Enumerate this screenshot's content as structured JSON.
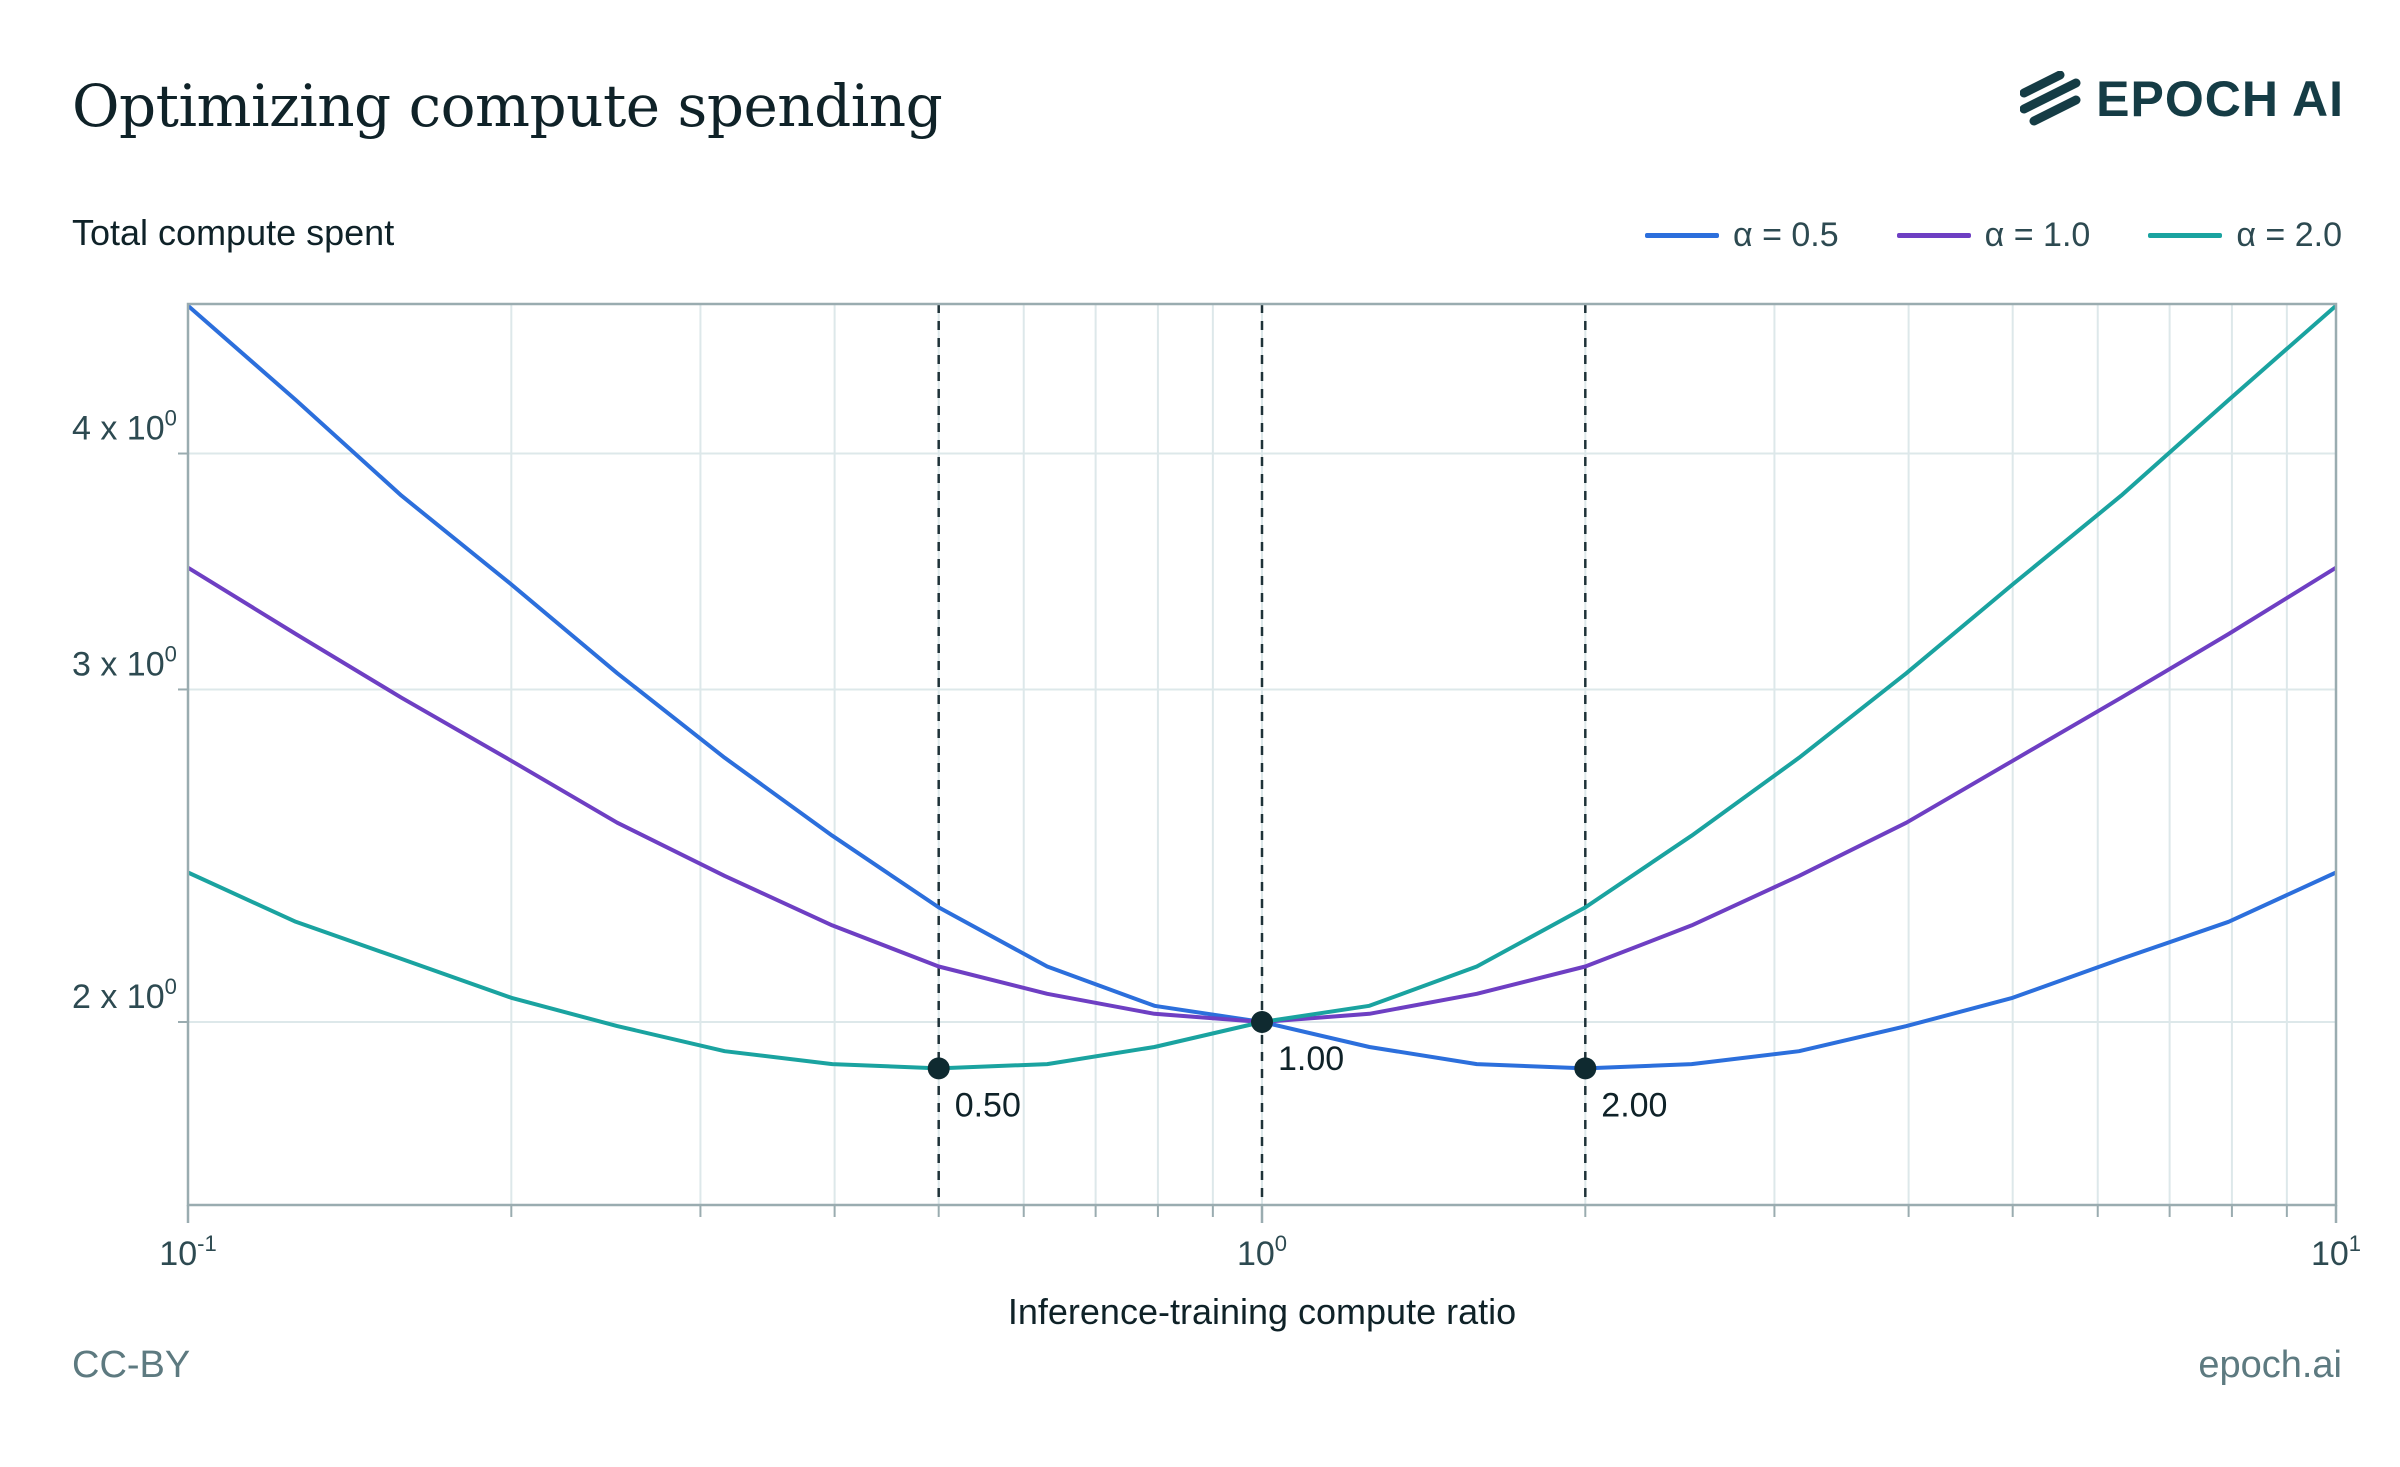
{
  "header": {
    "title": "Optimizing compute spending",
    "brand": "EPOCH AI"
  },
  "footer": {
    "license": "CC-BY",
    "site": "epoch.ai"
  },
  "colors": {
    "alpha_0_5": "#2c6fdc",
    "alpha_1_0": "#6e3fc3",
    "alpha_2_0": "#1aa3a0",
    "marker": "#0f2a30",
    "grid": "#dde8ea",
    "axis": "#9aacb0"
  },
  "chart_data": {
    "type": "line",
    "title": "Optimizing compute spending",
    "ylabel": "Total compute spent",
    "xlabel": "Inference-training compute ratio",
    "xscale": "log",
    "yscale": "log",
    "xlim": [
      0.1,
      10
    ],
    "ylim": [
      1.6,
      4.8
    ],
    "grid": true,
    "legend_position": "top-right",
    "x_ticks": [
      {
        "value": 0.1,
        "base": "10",
        "exp": "-1"
      },
      {
        "value": 1,
        "base": "10",
        "exp": "0"
      },
      {
        "value": 10,
        "base": "10",
        "exp": "1"
      }
    ],
    "y_ticks": [
      {
        "value": 2,
        "label": "2 x 10",
        "exp": "0"
      },
      {
        "value": 3,
        "label": "3 x 10",
        "exp": "0"
      },
      {
        "value": 4,
        "label": "4 x 10",
        "exp": "0"
      }
    ],
    "x": [
      0.1,
      0.126,
      0.158,
      0.2,
      0.251,
      0.316,
      0.398,
      0.5,
      0.631,
      0.794,
      1.0,
      1.259,
      1.585,
      2.0,
      2.512,
      3.162,
      3.981,
      5.0,
      6.31,
      7.943,
      10.0
    ],
    "series": [
      {
        "name": "α = 0.5",
        "color": "#2c6fdc",
        "values": [
          4.79,
          4.27,
          3.8,
          3.41,
          3.06,
          2.76,
          2.51,
          2.3,
          2.14,
          2.04,
          2.0,
          1.94,
          1.9,
          1.89,
          1.9,
          1.93,
          1.99,
          2.06,
          2.16,
          2.26,
          2.4
        ]
      },
      {
        "name": "α = 1.0",
        "color": "#6e3fc3",
        "values": [
          3.48,
          3.21,
          2.97,
          2.75,
          2.55,
          2.39,
          2.25,
          2.14,
          2.07,
          2.02,
          2.0,
          2.02,
          2.07,
          2.14,
          2.25,
          2.39,
          2.55,
          2.75,
          2.97,
          3.21,
          3.48
        ]
      },
      {
        "name": "α = 2.0",
        "color": "#1aa3a0",
        "values": [
          2.4,
          2.26,
          2.16,
          2.06,
          1.99,
          1.93,
          1.9,
          1.89,
          1.9,
          1.94,
          2.0,
          2.04,
          2.14,
          2.3,
          2.51,
          2.76,
          3.06,
          3.41,
          3.8,
          4.27,
          4.79
        ]
      }
    ],
    "annotations": [
      {
        "x": 0.5,
        "y": 1.89,
        "label": "0.50"
      },
      {
        "x": 1.0,
        "y": 2.0,
        "label": "1.00"
      },
      {
        "x": 2.0,
        "y": 1.89,
        "label": "2.00"
      }
    ]
  }
}
